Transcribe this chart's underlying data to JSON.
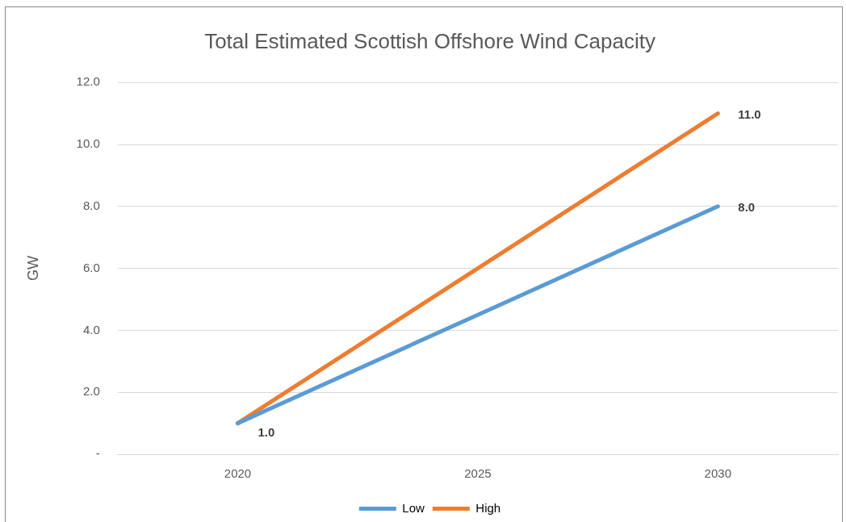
{
  "chart_data": {
    "type": "line",
    "title": "Total Estimated Scottish Offshore Wind Capacity",
    "ylabel": "GW",
    "categories": [
      "2020",
      "2025",
      "2030"
    ],
    "series": [
      {
        "name": "Low",
        "color": "#5b9bd5",
        "values": [
          1.0,
          4.5,
          8.0
        ],
        "value_labels": [
          "1.0",
          null,
          "8.0"
        ]
      },
      {
        "name": "High",
        "color": "#ed7d31",
        "values": [
          1.0,
          6.0,
          11.0
        ],
        "value_labels": [
          null,
          null,
          "11.0"
        ]
      }
    ],
    "ylim": [
      0,
      12
    ],
    "yticks": [
      {
        "value": 0,
        "label": "-"
      },
      {
        "value": 2,
        "label": "2.0"
      },
      {
        "value": 4,
        "label": "4.0"
      },
      {
        "value": 6,
        "label": "6.0"
      },
      {
        "value": 8,
        "label": "8.0"
      },
      {
        "value": 10,
        "label": "10.0"
      },
      {
        "value": 12,
        "label": "12.0"
      }
    ],
    "grid": "y",
    "legend": "bottom",
    "marker": "none",
    "line_style": "solid"
  }
}
